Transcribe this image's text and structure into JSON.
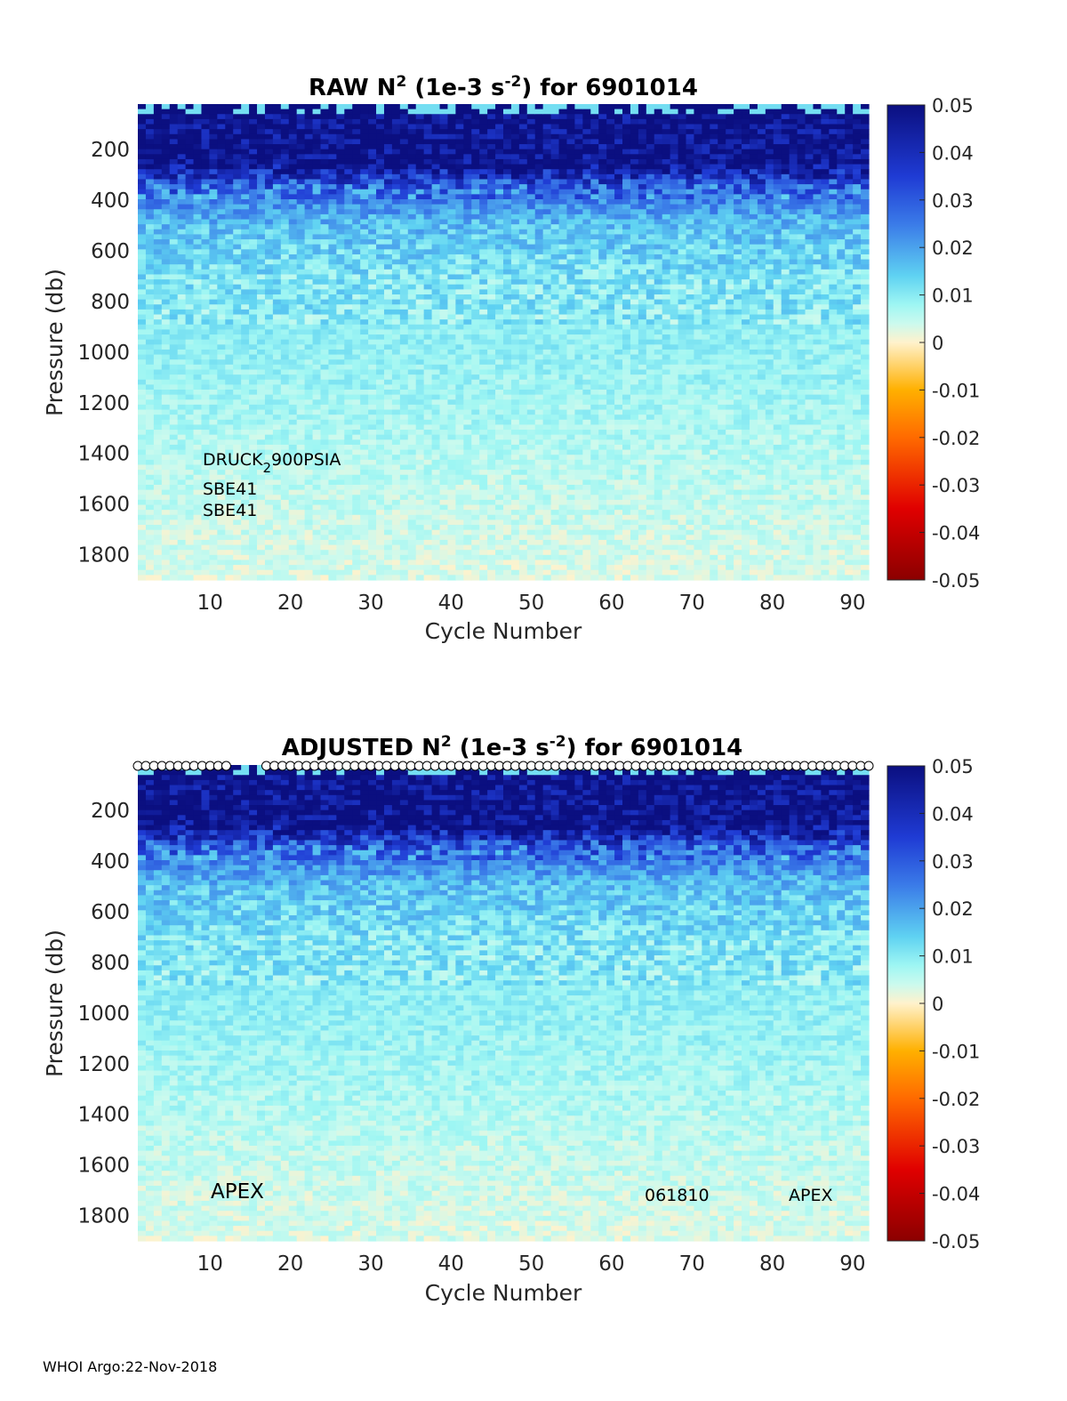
{
  "footer": "WHOI Argo:22-Nov-2018",
  "colormap_stops": [
    [
      "#8b0000",
      -0.05
    ],
    [
      "#e00000",
      -0.035
    ],
    [
      "#ff6a00",
      -0.02
    ],
    [
      "#ffb000",
      -0.01
    ],
    [
      "#fff2cc",
      0.0
    ],
    [
      "#cbfaee",
      0.004
    ],
    [
      "#9ef6f3",
      0.008
    ],
    [
      "#5fd2f2",
      0.014
    ],
    [
      "#3a7ae8",
      0.025
    ],
    [
      "#1f3bd4",
      0.035
    ],
    [
      "#0b0f80",
      0.05
    ]
  ],
  "chart_data": [
    {
      "type": "heatmap",
      "panel": "top",
      "title_main": "RAW N",
      "title_sup1": "2",
      "title_mid": " (1e-3 s",
      "title_sup2": "-2",
      "title_end": ") for 6901014",
      "xlabel": "Cycle Number",
      "ylabel": "Pressure (db)",
      "xlim": [
        1,
        92
      ],
      "ylim": [
        1900,
        20
      ],
      "xticks": [
        "10",
        "20",
        "30",
        "40",
        "50",
        "60",
        "70",
        "80",
        "90"
      ],
      "yticks": [
        "200",
        "400",
        "600",
        "800",
        "1000",
        "1200",
        "1400",
        "1600",
        "1800"
      ],
      "colorbar_ticks": [
        "0.05",
        "0.04",
        "0.03",
        "0.02",
        "0.01",
        "0",
        "-0.01",
        "-0.02",
        "-0.03",
        "-0.04",
        "-0.05"
      ],
      "clim": [
        -0.05,
        0.05
      ],
      "value_profile_by_pressure": [
        [
          20,
          0.012
        ],
        [
          60,
          0.05
        ],
        [
          250,
          0.05
        ],
        [
          350,
          0.028
        ],
        [
          500,
          0.016
        ],
        [
          700,
          0.011
        ],
        [
          1000,
          0.009
        ],
        [
          1400,
          0.006
        ],
        [
          1700,
          0.004
        ],
        [
          1900,
          0.003
        ]
      ],
      "annotations": [
        {
          "main": "DRUCK",
          "sub": "2",
          "rest": "900PSIA"
        },
        {
          "main": "SBE41"
        },
        {
          "main": "SBE41"
        }
      ]
    },
    {
      "type": "heatmap",
      "panel": "bottom",
      "title_main": "ADJUSTED N",
      "title_sup1": "2",
      "title_mid": " (1e-3 s",
      "title_sup2": "-2",
      "title_end": ") for 6901014",
      "xlabel": "Cycle Number",
      "ylabel": "Pressure (db)",
      "xlim": [
        1,
        92
      ],
      "ylim": [
        1900,
        20
      ],
      "xticks": [
        "10",
        "20",
        "30",
        "40",
        "50",
        "60",
        "70",
        "80",
        "90"
      ],
      "yticks": [
        "200",
        "400",
        "600",
        "800",
        "1000",
        "1200",
        "1400",
        "1600",
        "1800"
      ],
      "colorbar_ticks": [
        "0.05",
        "0.04",
        "0.03",
        "0.02",
        "0.01",
        "0",
        "-0.01",
        "-0.02",
        "-0.03",
        "-0.04",
        "-0.05"
      ],
      "clim": [
        -0.05,
        0.05
      ],
      "value_profile_by_pressure": [
        [
          20,
          0.012
        ],
        [
          60,
          0.05
        ],
        [
          250,
          0.05
        ],
        [
          350,
          0.028
        ],
        [
          500,
          0.016
        ],
        [
          700,
          0.011
        ],
        [
          1000,
          0.009
        ],
        [
          1400,
          0.006
        ],
        [
          1700,
          0.004
        ],
        [
          1900,
          0.003
        ]
      ],
      "qc_marker_cycles": "1-12, 17-92",
      "annotations": [
        {
          "main": "APEX"
        },
        {
          "main": "061810"
        },
        {
          "main": "APEX"
        }
      ]
    }
  ]
}
